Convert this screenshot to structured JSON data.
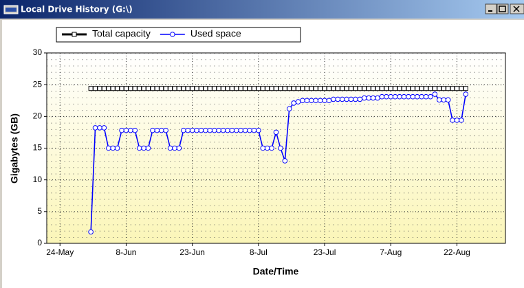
{
  "window": {
    "title": "Local Drive History (G:\\)"
  },
  "chart_data": {
    "type": "line",
    "xlabel": "Date/Time",
    "ylabel": "Gigabytes (GB)",
    "x": [
      "31-May",
      "1-Jun",
      "2-Jun",
      "3-Jun",
      "4-Jun",
      "5-Jun",
      "6-Jun",
      "7-Jun",
      "8-Jun",
      "9-Jun",
      "10-Jun",
      "11-Jun",
      "12-Jun",
      "13-Jun",
      "14-Jun",
      "15-Jun",
      "16-Jun",
      "17-Jun",
      "18-Jun",
      "19-Jun",
      "20-Jun",
      "21-Jun",
      "22-Jun",
      "23-Jun",
      "24-Jun",
      "25-Jun",
      "26-Jun",
      "27-Jun",
      "28-Jun",
      "29-Jun",
      "30-Jun",
      "1-Jul",
      "2-Jul",
      "3-Jul",
      "4-Jul",
      "5-Jul",
      "6-Jul",
      "7-Jul",
      "8-Jul",
      "9-Jul",
      "10-Jul",
      "11-Jul",
      "12-Jul",
      "13-Jul",
      "14-Jul",
      "15-Jul",
      "16-Jul",
      "17-Jul",
      "18-Jul",
      "19-Jul",
      "20-Jul",
      "21-Jul",
      "22-Jul",
      "23-Jul",
      "24-Jul",
      "25-Jul",
      "26-Jul",
      "27-Jul",
      "28-Jul",
      "29-Jul",
      "30-Jul",
      "31-Jul",
      "1-Aug",
      "2-Aug",
      "3-Aug",
      "4-Aug",
      "5-Aug",
      "6-Aug",
      "7-Aug",
      "8-Aug",
      "9-Aug",
      "10-Aug",
      "11-Aug",
      "12-Aug",
      "13-Aug",
      "14-Aug",
      "15-Aug",
      "16-Aug",
      "17-Aug",
      "18-Aug",
      "19-Aug",
      "20-Aug",
      "21-Aug",
      "22-Aug",
      "23-Aug",
      "24-Aug"
    ],
    "series": [
      {
        "name": "Total capacity",
        "color": "#000000",
        "marker": "square",
        "values": [
          24.4,
          24.4,
          24.4,
          24.4,
          24.4,
          24.4,
          24.4,
          24.4,
          24.4,
          24.4,
          24.4,
          24.4,
          24.4,
          24.4,
          24.4,
          24.4,
          24.4,
          24.4,
          24.4,
          24.4,
          24.4,
          24.4,
          24.4,
          24.4,
          24.4,
          24.4,
          24.4,
          24.4,
          24.4,
          24.4,
          24.4,
          24.4,
          24.4,
          24.4,
          24.4,
          24.4,
          24.4,
          24.4,
          24.4,
          24.4,
          24.4,
          24.4,
          24.4,
          24.4,
          24.4,
          24.4,
          24.4,
          24.4,
          24.4,
          24.4,
          24.4,
          24.4,
          24.4,
          24.4,
          24.4,
          24.4,
          24.4,
          24.4,
          24.4,
          24.4,
          24.4,
          24.4,
          24.4,
          24.4,
          24.4,
          24.4,
          24.4,
          24.4,
          24.4,
          24.4,
          24.4,
          24.4,
          24.4,
          24.4,
          24.4,
          24.4,
          24.4,
          24.4,
          24.4,
          24.4,
          24.4,
          24.4,
          24.4,
          24.4,
          24.4,
          24.4
        ]
      },
      {
        "name": "Used space",
        "color": "#0000ff",
        "marker": "circle",
        "values": [
          1.8,
          18.2,
          18.2,
          18.2,
          15,
          15,
          15,
          17.8,
          17.8,
          17.8,
          17.8,
          15,
          15,
          15,
          17.8,
          17.8,
          17.8,
          17.8,
          15,
          15,
          15,
          17.8,
          17.8,
          17.8,
          17.8,
          17.8,
          17.8,
          17.8,
          17.8,
          17.8,
          17.8,
          17.8,
          17.8,
          17.8,
          17.8,
          17.8,
          17.8,
          17.8,
          17.8,
          15,
          15,
          15,
          17.5,
          15,
          13,
          21.2,
          22.1,
          22.3,
          22.5,
          22.5,
          22.5,
          22.5,
          22.5,
          22.5,
          22.5,
          22.7,
          22.7,
          22.7,
          22.7,
          22.7,
          22.7,
          22.7,
          22.9,
          22.9,
          22.9,
          22.9,
          23.1,
          23.1,
          23.1,
          23.1,
          23.1,
          23.1,
          23.1,
          23.1,
          23.1,
          23.1,
          23.1,
          23.1,
          23.5,
          22.6,
          22.6,
          22.6,
          19.4,
          19.4,
          19.4,
          23.5
        ]
      }
    ],
    "xlim": [
      "21-May",
      "2-Sep"
    ],
    "xticks": [
      "24-May",
      "8-Jun",
      "23-Jun",
      "8-Jul",
      "23-Jul",
      "7-Aug",
      "22-Aug"
    ],
    "ylim": [
      0,
      30
    ],
    "yticks": [
      0,
      5,
      10,
      15,
      20,
      25,
      30
    ],
    "grid": true,
    "legend": "top"
  }
}
